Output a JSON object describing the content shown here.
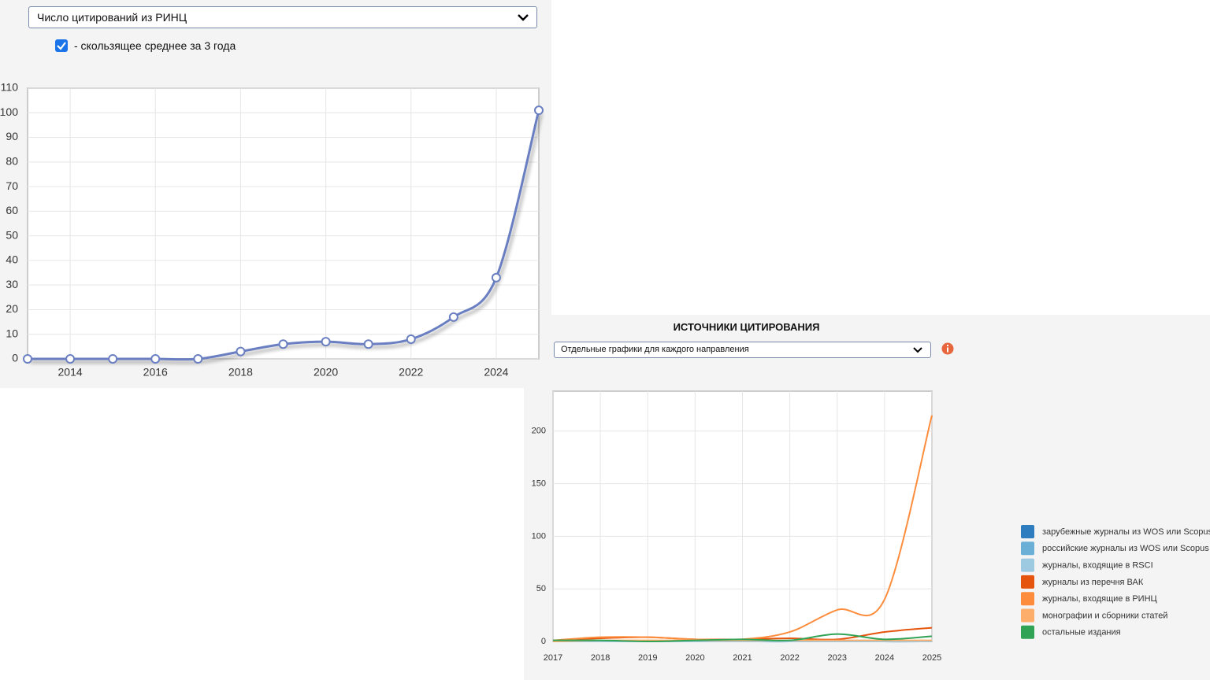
{
  "ui": {
    "top_select": "Число цитирований из РИНЦ",
    "checkbox_label": "- скользящее среднее за 3 года",
    "panel_title": "ИСТОЧНИКИ ЦИТИРОВАНИЯ",
    "bottom_select": "Отдельные графики для каждого направления"
  },
  "chart_data": [
    {
      "type": "line",
      "x": [
        2013,
        2014,
        2015,
        2016,
        2017,
        2018,
        2019,
        2020,
        2021,
        2022,
        2023,
        2024,
        2025
      ],
      "series": [
        {
          "color": "#6a7fc1",
          "values": [
            0,
            0,
            0,
            0,
            0,
            3,
            6,
            7,
            6,
            8,
            17,
            33,
            101
          ]
        }
      ],
      "xlim": [
        2013,
        2025
      ],
      "xticks": [
        2014,
        2016,
        2018,
        2020,
        2022,
        2024
      ],
      "ylim": [
        0,
        110
      ],
      "yticks": [
        0,
        10,
        20,
        30,
        40,
        50,
        60,
        70,
        80,
        90,
        100,
        110
      ],
      "grid": true,
      "markers": true,
      "smooth": true
    },
    {
      "type": "line",
      "x": [
        2017,
        2018,
        2019,
        2020,
        2021,
        2022,
        2023,
        2024,
        2025
      ],
      "series": [
        {
          "name": "зарубежные журналы из WOS или Scopus",
          "color": "#2e7ebf",
          "values": [
            0,
            0,
            0,
            0,
            0,
            0,
            1,
            0,
            0
          ]
        },
        {
          "name": "российские журналы из WOS или Scopus",
          "color": "#6baed6",
          "values": [
            0,
            0,
            0,
            0,
            0,
            0,
            0,
            0,
            0
          ]
        },
        {
          "name": "журналы, входящие в RSCI",
          "color": "#9ecae1",
          "values": [
            0,
            0,
            0,
            0,
            0,
            0,
            0,
            0,
            0
          ]
        },
        {
          "name": "журналы из перечня ВАК",
          "color": "#e6550d",
          "values": [
            1,
            3,
            4,
            2,
            2,
            3,
            2,
            9,
            13
          ]
        },
        {
          "name": "журналы, входящие в РИНЦ",
          "color": "#fd8d3c",
          "values": [
            1,
            4,
            4,
            2,
            2,
            9,
            30,
            40,
            215
          ]
        },
        {
          "name": "монографии и сборники статей",
          "color": "#fdae6b",
          "values": [
            0,
            1,
            1,
            1,
            1,
            1,
            1,
            1,
            1
          ]
        },
        {
          "name": "остальные издания",
          "color": "#31a354",
          "values": [
            1,
            1,
            0,
            1,
            2,
            1,
            7,
            2,
            5
          ]
        }
      ],
      "xlim": [
        2017,
        2025
      ],
      "xticks": [
        2017,
        2018,
        2019,
        2020,
        2021,
        2022,
        2023,
        2024,
        2025
      ],
      "ylim": [
        0,
        238
      ],
      "yticks": [
        0,
        50,
        100,
        150,
        200
      ],
      "grid": true,
      "markers": false,
      "smooth": true
    }
  ]
}
